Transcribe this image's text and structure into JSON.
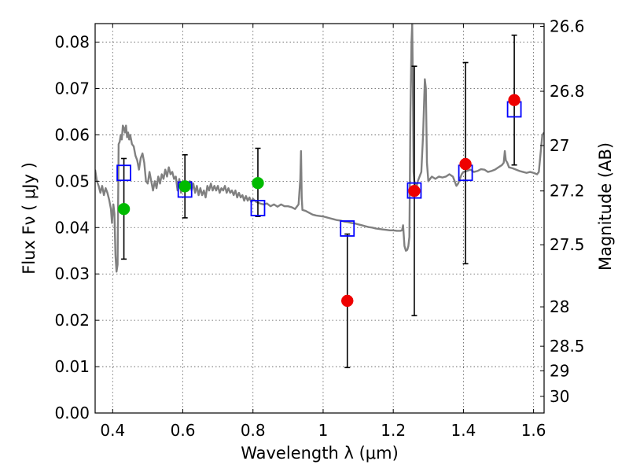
{
  "chart_data": {
    "type": "scatter",
    "xlabel": "Wavelength  λ (μm)",
    "ylabel": "Flux  Fν  ( μJy )",
    "ylabel_right": "Magnitude (AB)",
    "xlim": [
      0.35,
      1.63
    ],
    "ylim": [
      0.0,
      0.084
    ],
    "grid": true,
    "x_ticks": [
      0.4,
      0.6,
      0.8,
      1.0,
      1.2,
      1.4,
      1.6
    ],
    "x_tick_labels": [
      "0.4",
      "0.6",
      "0.8",
      "1",
      "1.2",
      "1.4",
      "1.6"
    ],
    "y_ticks": [
      0.0,
      0.01,
      0.02,
      0.03,
      0.04,
      0.05,
      0.06,
      0.07,
      0.08
    ],
    "y_tick_labels": [
      "0.00",
      "0.01",
      "0.02",
      "0.03",
      "0.04",
      "0.05",
      "0.06",
      "0.07",
      "0.08"
    ],
    "right_ticks": [
      {
        "flux": 0.0834,
        "label": "26.6"
      },
      {
        "flux": 0.0694,
        "label": "26.8"
      },
      {
        "flux": 0.0577,
        "label": "27"
      },
      {
        "flux": 0.0479,
        "label": "27.2"
      },
      {
        "flux": 0.0363,
        "label": "27.5"
      },
      {
        "flux": 0.0229,
        "label": "28"
      },
      {
        "flux": 0.0144,
        "label": "28.5"
      },
      {
        "flux": 0.0091,
        "label": "29"
      },
      {
        "flux": 0.0036,
        "label": "30"
      }
    ],
    "colors": {
      "spectrum": "#808080",
      "model_box": "#0000ff",
      "green_point": "#00bb00",
      "red_point": "#ee0000",
      "errorbar": "#000000",
      "grid": "#555555"
    },
    "series": [
      {
        "kind": "model-photometry",
        "marker": "open-square",
        "points": [
          {
            "x": 0.432,
            "y": 0.0518
          },
          {
            "x": 0.606,
            "y": 0.0482
          },
          {
            "x": 0.814,
            "y": 0.0442
          },
          {
            "x": 1.069,
            "y": 0.0398
          },
          {
            "x": 1.26,
            "y": 0.048
          },
          {
            "x": 1.406,
            "y": 0.0518
          },
          {
            "x": 1.545,
            "y": 0.0655
          }
        ]
      },
      {
        "kind": "detections",
        "marker": "filled-circle-green",
        "points": [
          {
            "x": 0.432,
            "y": 0.044,
            "lo": 0.0332,
            "hi": 0.0549
          },
          {
            "x": 0.606,
            "y": 0.0489,
            "lo": 0.0421,
            "hi": 0.0557
          },
          {
            "x": 0.814,
            "y": 0.0496,
            "lo": 0.0424,
            "hi": 0.0571
          }
        ]
      },
      {
        "kind": "non-detections",
        "marker": "filled-circle-red",
        "points": [
          {
            "x": 1.069,
            "y": 0.0242,
            "lo": 0.0098,
            "hi": 0.0386
          },
          {
            "x": 1.26,
            "y": 0.0479,
            "lo": 0.021,
            "hi": 0.0748
          },
          {
            "x": 1.406,
            "y": 0.0537,
            "lo": 0.0322,
            "hi": 0.0756
          },
          {
            "x": 1.545,
            "y": 0.0675,
            "lo": 0.0535,
            "hi": 0.0815
          }
        ]
      }
    ],
    "spectrum": [
      [
        0.35,
        0.0525
      ],
      [
        0.355,
        0.05
      ],
      [
        0.36,
        0.049
      ],
      [
        0.365,
        0.0475
      ],
      [
        0.37,
        0.049
      ],
      [
        0.375,
        0.047
      ],
      [
        0.38,
        0.0485
      ],
      [
        0.385,
        0.0475
      ],
      [
        0.39,
        0.046
      ],
      [
        0.395,
        0.044
      ],
      [
        0.398,
        0.041
      ],
      [
        0.402,
        0.045
      ],
      [
        0.405,
        0.043
      ],
      [
        0.408,
        0.034
      ],
      [
        0.411,
        0.0305
      ],
      [
        0.414,
        0.032
      ],
      [
        0.417,
        0.058
      ],
      [
        0.42,
        0.0585
      ],
      [
        0.423,
        0.06
      ],
      [
        0.426,
        0.059
      ],
      [
        0.429,
        0.062
      ],
      [
        0.432,
        0.0615
      ],
      [
        0.435,
        0.0605
      ],
      [
        0.438,
        0.062
      ],
      [
        0.441,
        0.0595
      ],
      [
        0.444,
        0.0605
      ],
      [
        0.447,
        0.059
      ],
      [
        0.45,
        0.06
      ],
      [
        0.455,
        0.058
      ],
      [
        0.46,
        0.0575
      ],
      [
        0.465,
        0.0555
      ],
      [
        0.47,
        0.0545
      ],
      [
        0.475,
        0.0525
      ],
      [
        0.48,
        0.055
      ],
      [
        0.485,
        0.056
      ],
      [
        0.49,
        0.054
      ],
      [
        0.495,
        0.05
      ],
      [
        0.5,
        0.0495
      ],
      [
        0.505,
        0.052
      ],
      [
        0.51,
        0.05
      ],
      [
        0.515,
        0.048
      ],
      [
        0.52,
        0.05
      ],
      [
        0.525,
        0.0485
      ],
      [
        0.53,
        0.051
      ],
      [
        0.535,
        0.0495
      ],
      [
        0.54,
        0.0515
      ],
      [
        0.545,
        0.0505
      ],
      [
        0.55,
        0.0525
      ],
      [
        0.555,
        0.051
      ],
      [
        0.56,
        0.053
      ],
      [
        0.565,
        0.0515
      ],
      [
        0.57,
        0.052
      ],
      [
        0.575,
        0.0505
      ],
      [
        0.58,
        0.051
      ],
      [
        0.585,
        0.048
      ],
      [
        0.59,
        0.0505
      ],
      [
        0.595,
        0.0475
      ],
      [
        0.6,
        0.05
      ],
      [
        0.605,
        0.0485
      ],
      [
        0.61,
        0.0495
      ],
      [
        0.615,
        0.048
      ],
      [
        0.62,
        0.05
      ],
      [
        0.625,
        0.048
      ],
      [
        0.63,
        0.0495
      ],
      [
        0.635,
        0.0475
      ],
      [
        0.64,
        0.049
      ],
      [
        0.645,
        0.047
      ],
      [
        0.65,
        0.0485
      ],
      [
        0.655,
        0.047
      ],
      [
        0.66,
        0.048
      ],
      [
        0.665,
        0.0465
      ],
      [
        0.67,
        0.049
      ],
      [
        0.675,
        0.048
      ],
      [
        0.68,
        0.0495
      ],
      [
        0.685,
        0.048
      ],
      [
        0.69,
        0.049
      ],
      [
        0.695,
        0.048
      ],
      [
        0.7,
        0.049
      ],
      [
        0.705,
        0.0475
      ],
      [
        0.71,
        0.0485
      ],
      [
        0.715,
        0.048
      ],
      [
        0.72,
        0.049
      ],
      [
        0.725,
        0.0475
      ],
      [
        0.73,
        0.0485
      ],
      [
        0.735,
        0.0475
      ],
      [
        0.74,
        0.048
      ],
      [
        0.745,
        0.047
      ],
      [
        0.75,
        0.048
      ],
      [
        0.755,
        0.0465
      ],
      [
        0.76,
        0.0475
      ],
      [
        0.765,
        0.0465
      ],
      [
        0.77,
        0.047
      ],
      [
        0.775,
        0.0458
      ],
      [
        0.78,
        0.0468
      ],
      [
        0.785,
        0.0458
      ],
      [
        0.79,
        0.0465
      ],
      [
        0.795,
        0.0455
      ],
      [
        0.8,
        0.0462
      ],
      [
        0.81,
        0.0455
      ],
      [
        0.82,
        0.0452
      ],
      [
        0.83,
        0.045
      ],
      [
        0.84,
        0.0452
      ],
      [
        0.85,
        0.0446
      ],
      [
        0.86,
        0.045
      ],
      [
        0.87,
        0.0445
      ],
      [
        0.88,
        0.045
      ],
      [
        0.89,
        0.0446
      ],
      [
        0.9,
        0.0446
      ],
      [
        0.91,
        0.0444
      ],
      [
        0.92,
        0.044
      ],
      [
        0.925,
        0.0445
      ],
      [
        0.93,
        0.045
      ],
      [
        0.935,
        0.0505
      ],
      [
        0.937,
        0.0565
      ],
      [
        0.939,
        0.0465
      ],
      [
        0.941,
        0.0438
      ],
      [
        0.95,
        0.0436
      ],
      [
        0.96,
        0.0432
      ],
      [
        0.97,
        0.0428
      ],
      [
        0.98,
        0.0426
      ],
      [
        0.99,
        0.0425
      ],
      [
        1.0,
        0.0424
      ],
      [
        1.01,
        0.0422
      ],
      [
        1.02,
        0.042
      ],
      [
        1.03,
        0.0418
      ],
      [
        1.04,
        0.0416
      ],
      [
        1.05,
        0.0415
      ],
      [
        1.06,
        0.0413
      ],
      [
        1.07,
        0.0412
      ],
      [
        1.08,
        0.041
      ],
      [
        1.09,
        0.0409
      ],
      [
        1.1,
        0.0407
      ],
      [
        1.11,
        0.0405
      ],
      [
        1.12,
        0.0403
      ],
      [
        1.13,
        0.0401
      ],
      [
        1.14,
        0.04
      ],
      [
        1.15,
        0.0398
      ],
      [
        1.16,
        0.0397
      ],
      [
        1.17,
        0.0396
      ],
      [
        1.18,
        0.0395
      ],
      [
        1.19,
        0.0394
      ],
      [
        1.2,
        0.0394
      ],
      [
        1.21,
        0.0393
      ],
      [
        1.22,
        0.0393
      ],
      [
        1.225,
        0.0394
      ],
      [
        1.228,
        0.0405
      ],
      [
        1.232,
        0.036
      ],
      [
        1.236,
        0.035
      ],
      [
        1.24,
        0.0352
      ],
      [
        1.243,
        0.036
      ],
      [
        1.246,
        0.038
      ],
      [
        1.249,
        0.065
      ],
      [
        1.252,
        0.08
      ],
      [
        1.254,
        0.084
      ],
      [
        1.256,
        0.07
      ],
      [
        1.258,
        0.052
      ],
      [
        1.26,
        0.05
      ],
      [
        1.263,
        0.0495
      ],
      [
        1.266,
        0.0485
      ],
      [
        1.27,
        0.05
      ],
      [
        1.275,
        0.051
      ],
      [
        1.28,
        0.052
      ],
      [
        1.285,
        0.06
      ],
      [
        1.29,
        0.072
      ],
      [
        1.293,
        0.07
      ],
      [
        1.296,
        0.054
      ],
      [
        1.3,
        0.05
      ],
      [
        1.305,
        0.0505
      ],
      [
        1.31,
        0.051
      ],
      [
        1.32,
        0.0505
      ],
      [
        1.33,
        0.051
      ],
      [
        1.34,
        0.0508
      ],
      [
        1.35,
        0.051
      ],
      [
        1.36,
        0.0515
      ],
      [
        1.37,
        0.051
      ],
      [
        1.375,
        0.05
      ],
      [
        1.38,
        0.049
      ],
      [
        1.385,
        0.0495
      ],
      [
        1.39,
        0.0505
      ],
      [
        1.395,
        0.0515
      ],
      [
        1.4,
        0.052
      ],
      [
        1.41,
        0.0522
      ],
      [
        1.42,
        0.0525
      ],
      [
        1.43,
        0.052
      ],
      [
        1.44,
        0.0522
      ],
      [
        1.45,
        0.0526
      ],
      [
        1.46,
        0.0525
      ],
      [
        1.47,
        0.052
      ],
      [
        1.48,
        0.0522
      ],
      [
        1.49,
        0.0525
      ],
      [
        1.5,
        0.053
      ],
      [
        1.51,
        0.0535
      ],
      [
        1.515,
        0.054
      ],
      [
        1.518,
        0.0565
      ],
      [
        1.521,
        0.0545
      ],
      [
        1.525,
        0.054
      ],
      [
        1.53,
        0.053
      ],
      [
        1.54,
        0.0528
      ],
      [
        1.55,
        0.0525
      ],
      [
        1.56,
        0.0522
      ],
      [
        1.57,
        0.052
      ],
      [
        1.58,
        0.0518
      ],
      [
        1.59,
        0.052
      ],
      [
        1.6,
        0.0518
      ],
      [
        1.61,
        0.0515
      ],
      [
        1.615,
        0.052
      ],
      [
        1.62,
        0.056
      ],
      [
        1.625,
        0.06
      ],
      [
        1.63,
        0.0605
      ]
    ]
  }
}
